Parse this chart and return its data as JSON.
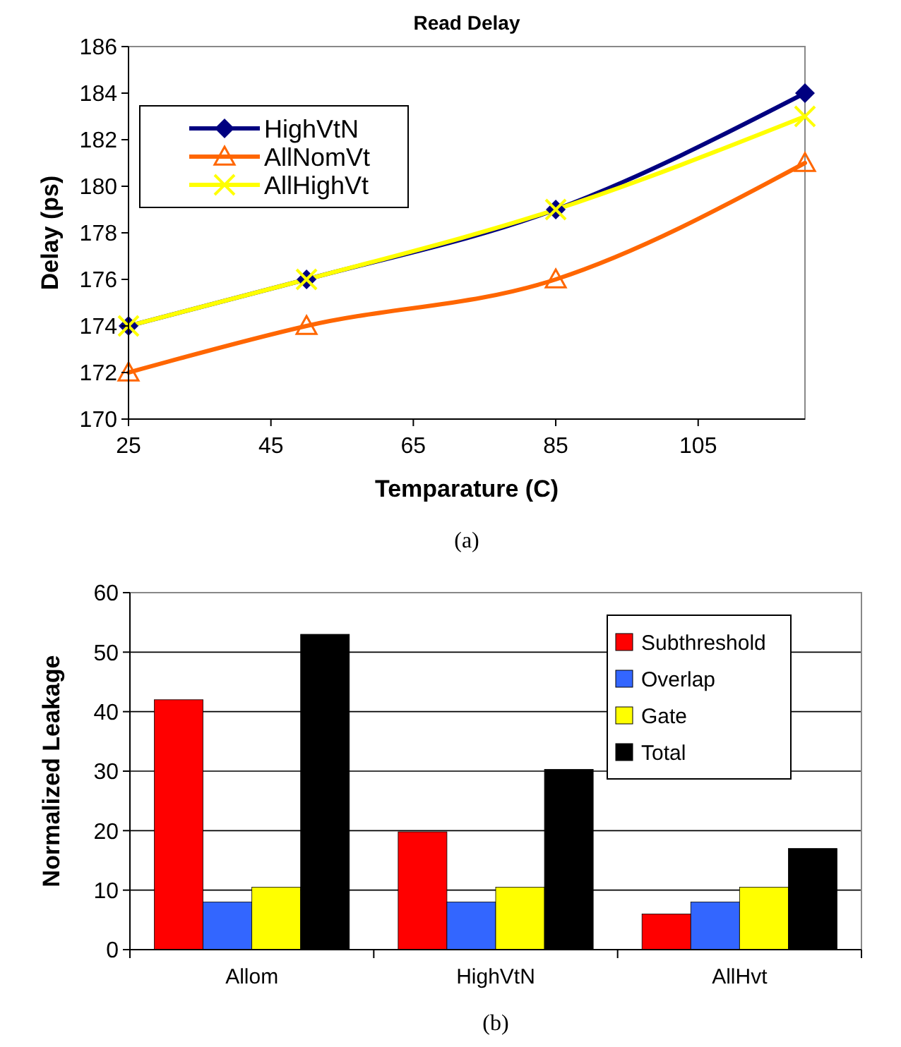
{
  "chart_data": [
    {
      "type": "line",
      "title": "Read Delay",
      "xlabel": "Temparature (C)",
      "ylabel": "Delay (ps)",
      "x": [
        25,
        50,
        85,
        120
      ],
      "series": [
        {
          "name": "HighVtN",
          "color": "#000080",
          "values": [
            174,
            176,
            179,
            184
          ],
          "marker": "diamond"
        },
        {
          "name": "AllNomVt",
          "color": "#ff6600",
          "values": [
            172,
            174,
            176,
            181
          ],
          "marker": "triangle"
        },
        {
          "name": "AllHighVt",
          "color": "#ffff00",
          "values": [
            174,
            176,
            179,
            183
          ],
          "marker": "cross"
        }
      ],
      "xlim": [
        25,
        120
      ],
      "xticks": [
        25,
        45,
        65,
        85,
        105
      ],
      "ylim": [
        170,
        186
      ],
      "yticks": [
        170,
        172,
        174,
        176,
        178,
        180,
        182,
        184,
        186
      ],
      "grid": false,
      "legend": "top left",
      "line_style": "solid",
      "annotations": [
        "(a)"
      ]
    },
    {
      "type": "bar",
      "ylabel": "Normalized Leakage",
      "categories": [
        "Allom",
        "HighVtN",
        "AllHvt"
      ],
      "series": [
        {
          "name": "Subthreshold",
          "color": "#ff0000",
          "values": [
            42,
            19.8,
            6
          ]
        },
        {
          "name": "Overlap",
          "color": "#3366ff",
          "values": [
            8,
            8,
            8
          ]
        },
        {
          "name": "Gate",
          "color": "#ffff00",
          "values": [
            10.5,
            10.5,
            10.5
          ]
        },
        {
          "name": "Total",
          "color": "#000000",
          "values": [
            53,
            30.3,
            17
          ]
        }
      ],
      "ylim": [
        0,
        60
      ],
      "yticks": [
        0,
        10,
        20,
        30,
        40,
        50,
        60
      ],
      "grid": "y",
      "legend": "top right",
      "annotations": [
        "(b)"
      ]
    }
  ]
}
